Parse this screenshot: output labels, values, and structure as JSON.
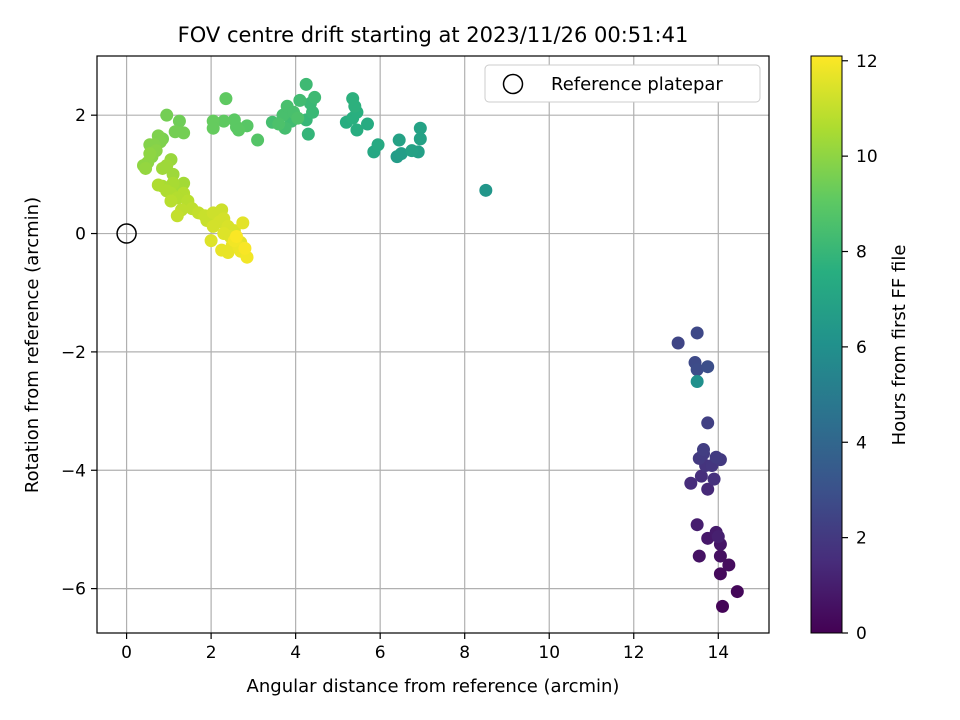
{
  "chart_data": {
    "type": "scatter",
    "title": "FOV centre drift starting at 2023/11/26 00:51:41",
    "xlabel": "Angular distance from reference (arcmin)",
    "ylabel": "Rotation from reference (arcmin)",
    "xlim": [
      -0.7,
      15.2
    ],
    "ylim": [
      -6.75,
      3.0
    ],
    "xticks": [
      0,
      2,
      4,
      6,
      8,
      10,
      12,
      14
    ],
    "xtick_labels": [
      "0",
      "2",
      "4",
      "6",
      "8",
      "10",
      "12",
      "14"
    ],
    "yticks": [
      -6,
      -4,
      -2,
      0,
      2
    ],
    "ytick_labels": [
      "−6",
      "−4",
      "−2",
      "0",
      "2"
    ],
    "grid": true,
    "legend": {
      "position": "upper-right",
      "entries": [
        "Reference platepar"
      ]
    },
    "reference_point": {
      "x": 0,
      "y": 0
    },
    "colorbar": {
      "label": "Hours from first FF file",
      "range": [
        0,
        12.1
      ],
      "ticks": [
        0,
        2,
        4,
        6,
        8,
        10,
        12
      ],
      "tick_labels": [
        "0",
        "2",
        "4",
        "6",
        "8",
        "10",
        "12"
      ],
      "colormap": "viridis"
    },
    "series": [
      {
        "points": [
          [
            14.1,
            -6.3,
            0.1
          ],
          [
            14.45,
            -6.05,
            0.2
          ],
          [
            14.05,
            -5.75,
            0.3
          ],
          [
            14.25,
            -5.6,
            0.4
          ],
          [
            14.05,
            -5.45,
            0.5
          ],
          [
            13.55,
            -5.45,
            0.6
          ],
          [
            14.05,
            -5.25,
            0.7
          ],
          [
            13.75,
            -5.15,
            0.8
          ],
          [
            13.95,
            -5.05,
            0.9
          ],
          [
            13.5,
            -4.92,
            1.0
          ],
          [
            14.0,
            -5.12,
            1.05
          ],
          [
            13.75,
            -4.32,
            1.4
          ],
          [
            13.35,
            -4.22,
            1.5
          ],
          [
            13.6,
            -4.1,
            1.6
          ],
          [
            13.9,
            -4.15,
            1.7
          ],
          [
            13.7,
            -3.92,
            1.8
          ],
          [
            13.85,
            -3.92,
            1.9
          ],
          [
            14.05,
            -3.82,
            2.0
          ],
          [
            13.55,
            -3.8,
            2.0
          ],
          [
            13.65,
            -3.72,
            2.1
          ],
          [
            13.95,
            -3.78,
            2.1
          ],
          [
            13.65,
            -3.65,
            2.2
          ],
          [
            13.75,
            -3.2,
            2.3
          ],
          [
            13.05,
            -1.85,
            2.5
          ],
          [
            13.5,
            -1.68,
            2.6
          ],
          [
            13.45,
            -2.18,
            2.7
          ],
          [
            13.5,
            -2.3,
            2.8
          ],
          [
            13.75,
            -2.25,
            2.9
          ],
          [
            13.5,
            -2.5,
            6.0
          ],
          [
            8.5,
            0.73,
            6.3
          ],
          [
            6.4,
            1.3,
            6.6
          ],
          [
            6.5,
            1.35,
            6.7
          ],
          [
            6.9,
            1.38,
            6.8
          ],
          [
            6.75,
            1.4,
            6.9
          ],
          [
            6.95,
            1.6,
            6.9
          ],
          [
            6.45,
            1.58,
            6.9
          ],
          [
            6.95,
            1.78,
            6.95
          ],
          [
            5.85,
            1.38,
            7.2
          ],
          [
            5.95,
            1.5,
            7.3
          ],
          [
            5.7,
            1.85,
            7.4
          ],
          [
            5.2,
            1.88,
            7.5
          ],
          [
            5.45,
            1.75,
            7.5
          ],
          [
            5.35,
            1.95,
            7.6
          ],
          [
            5.45,
            2.05,
            7.6
          ],
          [
            5.4,
            2.15,
            7.7
          ],
          [
            5.35,
            2.28,
            7.7
          ],
          [
            4.3,
            1.68,
            7.9
          ],
          [
            4.25,
            1.92,
            8.0
          ],
          [
            4.4,
            2.05,
            8.1
          ],
          [
            4.35,
            2.2,
            8.1
          ],
          [
            4.45,
            2.3,
            8.2
          ],
          [
            4.25,
            2.52,
            8.2
          ],
          [
            4.1,
            2.25,
            8.3
          ],
          [
            3.9,
            1.9,
            8.3
          ],
          [
            3.75,
            1.78,
            8.4
          ],
          [
            3.45,
            1.88,
            8.4
          ],
          [
            3.7,
            2.0,
            8.5
          ],
          [
            3.8,
            2.15,
            8.5
          ],
          [
            3.95,
            2.05,
            8.5
          ],
          [
            4.05,
            1.95,
            8.6
          ],
          [
            3.6,
            1.85,
            8.6
          ],
          [
            3.1,
            1.58,
            8.8
          ],
          [
            2.85,
            1.82,
            8.9
          ],
          [
            2.6,
            1.8,
            9.0
          ],
          [
            2.55,
            1.92,
            9.0
          ],
          [
            2.65,
            1.75,
            9.0
          ],
          [
            2.3,
            1.9,
            9.1
          ],
          [
            2.35,
            2.28,
            9.1
          ],
          [
            2.05,
            1.9,
            9.2
          ],
          [
            2.05,
            1.78,
            9.2
          ],
          [
            1.25,
            1.9,
            9.4
          ],
          [
            1.35,
            1.7,
            9.5
          ],
          [
            1.15,
            1.72,
            9.5
          ],
          [
            0.95,
            2.0,
            9.5
          ],
          [
            0.85,
            1.6,
            9.6
          ],
          [
            0.75,
            1.65,
            9.7
          ],
          [
            0.8,
            1.55,
            9.7
          ],
          [
            0.65,
            1.5,
            9.8
          ],
          [
            0.55,
            1.5,
            9.8
          ],
          [
            0.7,
            1.4,
            9.9
          ],
          [
            0.6,
            1.3,
            9.9
          ],
          [
            0.5,
            1.2,
            10.0
          ],
          [
            0.55,
            1.35,
            10.0
          ],
          [
            0.4,
            1.15,
            10.0
          ],
          [
            0.45,
            1.1,
            10.1
          ],
          [
            1.05,
            1.25,
            10.2
          ],
          [
            0.85,
            1.1,
            10.3
          ],
          [
            1.1,
            1.0,
            10.3
          ],
          [
            0.95,
            1.15,
            10.3
          ],
          [
            1.35,
            0.85,
            10.4
          ],
          [
            1.2,
            0.75,
            10.4
          ],
          [
            1.1,
            0.85,
            10.5
          ],
          [
            0.85,
            0.8,
            10.5
          ],
          [
            0.75,
            0.82,
            10.6
          ],
          [
            0.95,
            0.72,
            10.6
          ],
          [
            1.05,
            0.68,
            10.6
          ],
          [
            1.35,
            0.68,
            10.7
          ],
          [
            1.2,
            0.6,
            10.7
          ],
          [
            1.05,
            0.55,
            10.8
          ],
          [
            1.45,
            0.55,
            10.8
          ],
          [
            1.55,
            0.42,
            10.9
          ],
          [
            1.3,
            0.4,
            10.9
          ],
          [
            1.2,
            0.3,
            11.0
          ],
          [
            1.7,
            0.35,
            11.0
          ],
          [
            1.85,
            0.3,
            11.1
          ],
          [
            1.9,
            0.22,
            11.1
          ],
          [
            2.05,
            0.35,
            11.2
          ],
          [
            2.15,
            0.3,
            11.2
          ],
          [
            2.25,
            0.4,
            11.2
          ],
          [
            2.3,
            0.25,
            11.3
          ],
          [
            2.2,
            0.2,
            11.3
          ],
          [
            2.05,
            0.12,
            11.3
          ],
          [
            2.4,
            0.12,
            11.4
          ],
          [
            2.55,
            0.05,
            11.4
          ],
          [
            2.3,
            0.0,
            11.5
          ],
          [
            2.45,
            -0.05,
            11.5
          ],
          [
            2.6,
            -0.1,
            11.5
          ],
          [
            2.75,
            0.18,
            11.6
          ],
          [
            2.7,
            -0.15,
            11.6
          ],
          [
            2.5,
            -0.2,
            11.7
          ],
          [
            2.4,
            -0.32,
            11.7
          ],
          [
            2.65,
            -0.22,
            11.8
          ],
          [
            2.7,
            -0.3,
            11.8
          ],
          [
            2.85,
            -0.4,
            11.9
          ],
          [
            2.0,
            -0.12,
            11.5
          ],
          [
            2.25,
            -0.28,
            11.7
          ],
          [
            2.55,
            -0.12,
            11.9
          ],
          [
            2.8,
            -0.25,
            12.0
          ],
          [
            2.6,
            -0.05,
            12.05
          ]
        ]
      }
    ]
  }
}
